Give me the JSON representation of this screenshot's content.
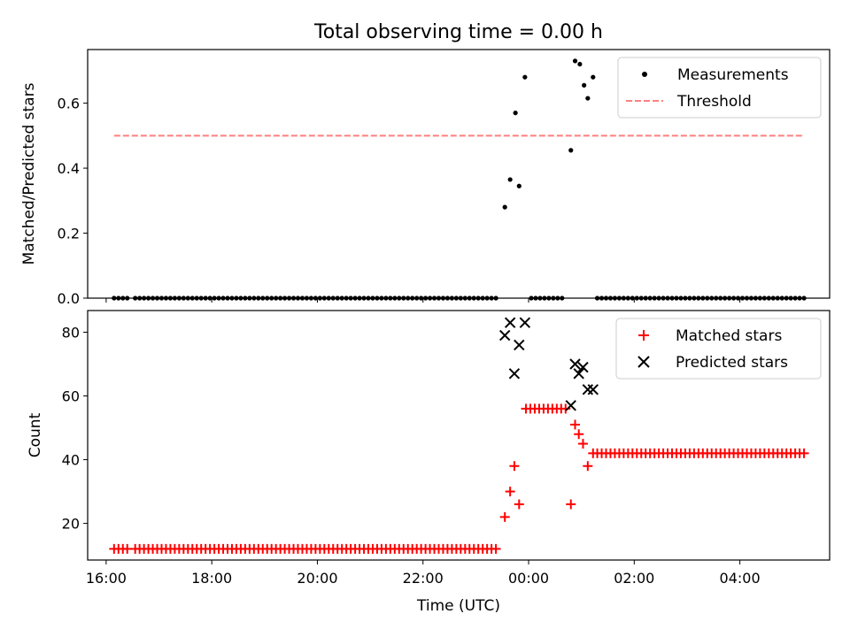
{
  "title": "Total observing time = 0.00 h",
  "xlabel": "Time (UTC)",
  "colors": {
    "matched": "#ff0000",
    "predicted": "#000000",
    "measurement": "#000000",
    "threshold": "#ff7f7f"
  },
  "chart_data": [
    {
      "type": "scatter",
      "ylabel": "Matched/Predicted stars",
      "ylim": [
        0,
        0.765
      ],
      "yticks": [
        "0.0",
        "0.2",
        "0.4",
        "0.6"
      ],
      "ytick_values": [
        0,
        0.2,
        0.4,
        0.6
      ],
      "xlim": [
        15.65,
        29.7
      ],
      "legend_position": "top-right",
      "legend": [
        "Measurements",
        "Threshold"
      ],
      "threshold": {
        "value": 0.5,
        "x_start": 16.15,
        "x_end": 29.2
      },
      "series": [
        {
          "name": "Measurements",
          "segments": [
            {
              "x_start": 16.15,
              "x_end": 16.45,
              "step": 0.0833,
              "y": 0
            },
            {
              "x_start": 16.55,
              "x_end": 23.45,
              "step": 0.0833,
              "y": 0
            },
            {
              "x_start": 24.05,
              "x_end": 24.7,
              "step": 0.0833,
              "y": 0
            },
            {
              "x_start": 25.3,
              "x_end": 29.25,
              "step": 0.0833,
              "y": 0
            }
          ],
          "points": [
            {
              "x": 23.55,
              "y": 0.28
            },
            {
              "x": 23.65,
              "y": 0.365
            },
            {
              "x": 23.75,
              "y": 0.57
            },
            {
              "x": 23.82,
              "y": 0.345
            },
            {
              "x": 23.93,
              "y": 0.68
            },
            {
              "x": 24.8,
              "y": 0.455
            },
            {
              "x": 24.88,
              "y": 0.73
            },
            {
              "x": 24.97,
              "y": 0.72
            },
            {
              "x": 25.05,
              "y": 0.655
            },
            {
              "x": 25.12,
              "y": 0.615
            },
            {
              "x": 25.22,
              "y": 0.68
            }
          ]
        }
      ]
    },
    {
      "type": "scatter",
      "ylabel": "Count",
      "ylim": [
        8.5,
        86.8
      ],
      "yticks": [
        "20",
        "40",
        "60",
        "80"
      ],
      "ytick_values": [
        20,
        40,
        60,
        80
      ],
      "xlim": [
        15.65,
        29.7
      ],
      "xticks": [
        "16:00",
        "18:00",
        "20:00",
        "22:00",
        "00:00",
        "02:00",
        "04:00"
      ],
      "xtick_values": [
        16,
        18,
        20,
        22,
        24,
        26,
        28
      ],
      "legend_position": "top-right",
      "legend": [
        "Matched stars",
        "Predicted stars"
      ],
      "series": [
        {
          "name": "Matched stars",
          "segments": [
            {
              "x_start": 16.15,
              "x_end": 16.45,
              "step": 0.0833,
              "y": 12
            },
            {
              "x_start": 16.55,
              "x_end": 23.45,
              "step": 0.0833,
              "y": 12
            },
            {
              "x_start": 23.95,
              "x_end": 24.7,
              "step": 0.0833,
              "y": 56
            },
            {
              "x_start": 25.3,
              "x_end": 29.25,
              "step": 0.0833,
              "y": 42
            }
          ],
          "points": [
            {
              "x": 23.55,
              "y": 22
            },
            {
              "x": 23.65,
              "y": 30
            },
            {
              "x": 23.73,
              "y": 38
            },
            {
              "x": 23.82,
              "y": 26
            },
            {
              "x": 24.8,
              "y": 26
            },
            {
              "x": 24.88,
              "y": 51
            },
            {
              "x": 24.95,
              "y": 48
            },
            {
              "x": 25.03,
              "y": 45
            },
            {
              "x": 25.12,
              "y": 38
            },
            {
              "x": 25.22,
              "y": 42
            }
          ]
        },
        {
          "name": "Predicted stars",
          "points": [
            {
              "x": 23.55,
              "y": 79
            },
            {
              "x": 23.65,
              "y": 83
            },
            {
              "x": 23.73,
              "y": 67
            },
            {
              "x": 23.82,
              "y": 76
            },
            {
              "x": 23.93,
              "y": 83
            },
            {
              "x": 24.8,
              "y": 57
            },
            {
              "x": 24.88,
              "y": 70
            },
            {
              "x": 24.95,
              "y": 67
            },
            {
              "x": 25.03,
              "y": 69
            },
            {
              "x": 25.12,
              "y": 62
            },
            {
              "x": 25.22,
              "y": 62
            }
          ]
        }
      ]
    }
  ]
}
